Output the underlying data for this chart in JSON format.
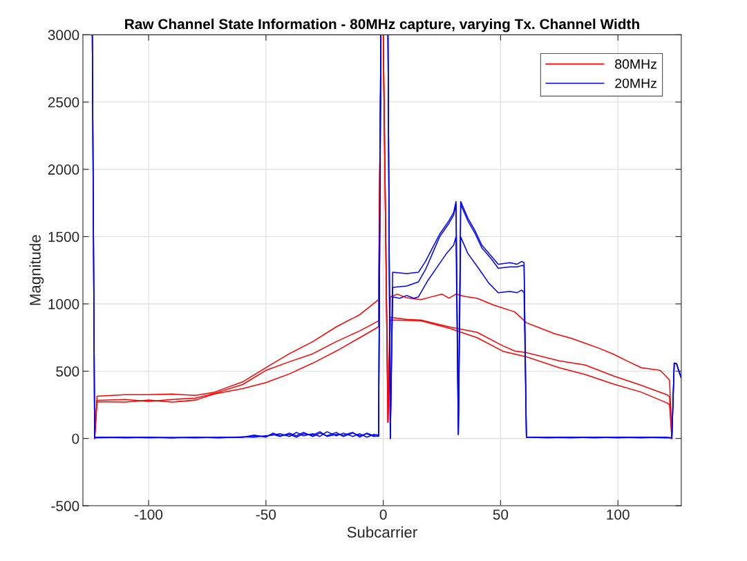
{
  "chart_data": {
    "type": "line",
    "title": "Raw Channel State Information - 80MHz capture, varying Tx. Channel Width",
    "xlabel": "Subcarrier",
    "ylabel": "Magnitude",
    "xlim": [
      -128,
      127
    ],
    "ylim": [
      -500,
      3000
    ],
    "xticks": [
      -100,
      -50,
      0,
      50,
      100
    ],
    "yticks": [
      -500,
      0,
      500,
      1000,
      1500,
      2000,
      2500,
      3000
    ],
    "grid": true,
    "legend": "top right",
    "line_style": "solid",
    "marker": "none",
    "series": [
      {
        "name": "80MHz",
        "color": "#ff0000",
        "x": [
          -123,
          -122,
          -110,
          -100,
          -90,
          -80,
          -72,
          -60,
          -50,
          -40,
          -30,
          -20,
          -10,
          -2,
          -1,
          0,
          2,
          3,
          6,
          10,
          16,
          20,
          25,
          28,
          31,
          35,
          40,
          47,
          56,
          61,
          67,
          73,
          80,
          86,
          92,
          98,
          104,
          110,
          118,
          122,
          123
        ],
        "values": [
          0,
          314,
          325,
          325,
          330,
          320,
          344,
          420,
          526,
          630,
          720,
          830,
          920,
          1032,
          3000,
          3000,
          120,
          1052,
          1073,
          1045,
          1032,
          1050,
          1073,
          1042,
          1073,
          1055,
          1042,
          992,
          941,
          860,
          820,
          779,
          745,
          708,
          670,
          627,
          575,
          526,
          506,
          435,
          0
        ]
      },
      {
        "color": "#ff0000",
        "x": [
          -123,
          -122,
          -110,
          -100,
          -90,
          -80,
          -72,
          -60,
          -50,
          -40,
          -30,
          -20,
          -10,
          -2,
          -1,
          0,
          2,
          3,
          10,
          16,
          28,
          40,
          51,
          56,
          61,
          75,
          86,
          98,
          110,
          121,
          122,
          123
        ],
        "values": [
          0,
          283,
          290,
          275,
          290,
          300,
          335,
          400,
          506,
          570,
          630,
          720,
          800,
          874,
          3000,
          3000,
          120,
          900,
          885,
          880,
          830,
          789,
          688,
          650,
          638,
          577,
          546,
          465,
          395,
          324,
          310,
          0
        ]
      },
      {
        "color": "#ff0000",
        "x": [
          -123,
          -122,
          -110,
          -100,
          -90,
          -80,
          -72,
          -60,
          -50,
          -40,
          -30,
          -20,
          -10,
          -2,
          -1,
          0,
          2,
          3,
          10,
          16,
          28,
          40,
          51,
          61,
          75,
          86,
          98,
          110,
          121,
          122,
          123
        ],
        "values": [
          0,
          273,
          270,
          285,
          270,
          285,
          330,
          370,
          415,
          480,
          560,
          650,
          749,
          830,
          3000,
          3000,
          120,
          880,
          878,
          875,
          820,
          749,
          648,
          607,
          526,
          476,
          405,
          344,
          263,
          250,
          0
        ]
      },
      {
        "name": "20MHz",
        "color": "#0000ff",
        "x": [
          -124,
          -123,
          -110,
          -100,
          -90,
          -80,
          -70,
          -60,
          -55,
          -50,
          -47,
          -44,
          -40,
          -37,
          -34,
          -30,
          -27,
          -24,
          -20,
          -17,
          -13,
          -10,
          -7,
          -4,
          -2,
          -1,
          0,
          1,
          2,
          3,
          4,
          10,
          15,
          18,
          21,
          24,
          28,
          30,
          31,
          32,
          33,
          36,
          39,
          42,
          46,
          49,
          54,
          57,
          59,
          60,
          61,
          70,
          80,
          90,
          100,
          110,
          120,
          123,
          124,
          125,
          126,
          127
        ],
        "values": [
          3000,
          10,
          5,
          8,
          5,
          8,
          6,
          10,
          20,
          15,
          30,
          15,
          40,
          20,
          45,
          15,
          40,
          20,
          45,
          15,
          40,
          20,
          35,
          15,
          20,
          3000,
          3000,
          3000,
          3000,
          0,
          1235,
          1225,
          1235,
          1316,
          1417,
          1518,
          1619,
          1680,
          1761,
          30,
          1761,
          1639,
          1548,
          1437,
          1356,
          1295,
          1306,
          1295,
          1316,
          1306,
          10,
          8,
          10,
          5,
          10,
          8,
          5,
          5,
          560,
          555,
          500,
          450
        ]
      },
      {
        "color": "#0000ff",
        "x": [
          -124,
          -123,
          -110,
          -100,
          -90,
          -80,
          -70,
          -60,
          -55,
          -50,
          -47,
          -44,
          -40,
          -37,
          -34,
          -30,
          -27,
          -24,
          -20,
          -17,
          -13,
          -10,
          -7,
          -4,
          -2,
          -1,
          0,
          1,
          2,
          3,
          4,
          10,
          15,
          18,
          21,
          24,
          28,
          30,
          31,
          32,
          33,
          36,
          39,
          42,
          46,
          49,
          54,
          57,
          59,
          60,
          61,
          70,
          80,
          90,
          100,
          110,
          120,
          123,
          124,
          125,
          126,
          127
        ],
        "values": [
          3000,
          8,
          10,
          5,
          8,
          5,
          10,
          8,
          25,
          10,
          40,
          20,
          30,
          10,
          35,
          25,
          50,
          15,
          30,
          25,
          45,
          10,
          40,
          20,
          15,
          3000,
          3000,
          3000,
          3000,
          0,
          1123,
          1133,
          1164,
          1255,
          1376,
          1498,
          1599,
          1660,
          1740,
          30,
          1740,
          1619,
          1528,
          1417,
          1336,
          1265,
          1275,
          1275,
          1285,
          1285,
          10,
          5,
          8,
          10,
          5,
          10,
          8,
          5,
          560,
          555,
          500,
          450
        ]
      },
      {
        "color": "#0000ff",
        "x": [
          -124,
          -123,
          -110,
          -100,
          -90,
          -80,
          -70,
          -60,
          -55,
          -50,
          -47,
          -44,
          -40,
          -37,
          -34,
          -30,
          -27,
          -24,
          -20,
          -17,
          -13,
          -10,
          -7,
          -4,
          -2,
          -1,
          0,
          1,
          2,
          3,
          4,
          7,
          10,
          13,
          15,
          19,
          23,
          27,
          30,
          31,
          32,
          33,
          36,
          41,
          45,
          49,
          54,
          57,
          59,
          60,
          61,
          70,
          80,
          90,
          100,
          110,
          120,
          123,
          124,
          125,
          126,
          127
        ],
        "values": [
          3000,
          5,
          8,
          10,
          5,
          10,
          5,
          12,
          10,
          20,
          25,
          35,
          15,
          45,
          20,
          35,
          15,
          50,
          20,
          40,
          15,
          35,
          10,
          30,
          25,
          3000,
          3000,
          3000,
          3000,
          0,
          1052,
          1042,
          1063,
          1042,
          1052,
          1174,
          1275,
          1376,
          1437,
          1498,
          30,
          1498,
          1376,
          1255,
          1154,
          1083,
          1093,
          1083,
          1103,
          1083,
          10,
          8,
          5,
          10,
          8,
          5,
          10,
          5,
          560,
          555,
          500,
          450
        ]
      }
    ]
  }
}
